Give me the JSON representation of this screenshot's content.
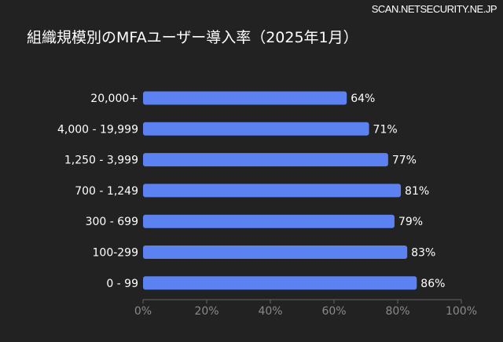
{
  "source": "SCAN.NETSECURITY.NE.JP",
  "chart_data": {
    "type": "bar",
    "orientation": "horizontal",
    "title": "組織規模別のMFAユーザー導入率（2025年1月）",
    "categories": [
      "20,000+",
      "4,000 - 19,999",
      "1,250 - 3,999",
      "700 - 1,249",
      "300 - 699",
      "100-299",
      "0 - 99"
    ],
    "values": [
      64,
      71,
      77,
      81,
      79,
      83,
      86
    ],
    "value_labels": [
      "64%",
      "71%",
      "77%",
      "81%",
      "79%",
      "83%",
      "86%"
    ],
    "xlim": [
      0,
      100
    ],
    "xticks": [
      "0%",
      "20%",
      "40%",
      "60%",
      "80%",
      "100%"
    ],
    "grid": false,
    "legend": "none",
    "colors": {
      "bar": "#5b82f0",
      "background": "#222222",
      "text": "#ffffff",
      "axis": "#8a8a8a"
    }
  }
}
